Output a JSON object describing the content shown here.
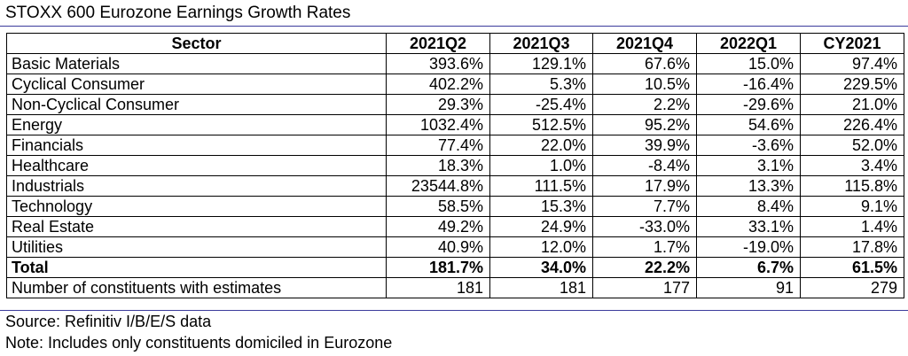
{
  "title": "STOXX 600 Eurozone Earnings Growth Rates",
  "table": {
    "headers": [
      "Sector",
      "2021Q2",
      "2021Q3",
      "2021Q4",
      "2022Q1",
      "CY2021"
    ],
    "rows": [
      {
        "sector": "Basic Materials",
        "values": [
          "393.6%",
          "129.1%",
          "67.6%",
          "15.0%",
          "97.4%"
        ]
      },
      {
        "sector": "Cyclical Consumer",
        "values": [
          "402.2%",
          "5.3%",
          "10.5%",
          "-16.4%",
          "229.5%"
        ]
      },
      {
        "sector": "Non-Cyclical Consumer",
        "values": [
          "29.3%",
          "-25.4%",
          "2.2%",
          "-29.6%",
          "21.0%"
        ]
      },
      {
        "sector": "Energy",
        "values": [
          "1032.4%",
          "512.5%",
          "95.2%",
          "54.6%",
          "226.4%"
        ]
      },
      {
        "sector": "Financials",
        "values": [
          "77.4%",
          "22.0%",
          "39.9%",
          "-3.6%",
          "52.0%"
        ]
      },
      {
        "sector": "Healthcare",
        "values": [
          "18.3%",
          "1.0%",
          "-8.4%",
          "3.1%",
          "3.4%"
        ]
      },
      {
        "sector": "Industrials",
        "values": [
          "23544.8%",
          "111.5%",
          "17.9%",
          "13.3%",
          "115.8%"
        ]
      },
      {
        "sector": "Technology",
        "values": [
          "58.5%",
          "15.3%",
          "7.7%",
          "8.4%",
          "9.1%"
        ]
      },
      {
        "sector": "Real Estate",
        "values": [
          "49.2%",
          "24.9%",
          "-33.0%",
          "33.1%",
          "1.4%"
        ]
      },
      {
        "sector": "Utilities",
        "values": [
          "40.9%",
          "12.0%",
          "1.7%",
          "-19.0%",
          "17.8%"
        ]
      }
    ],
    "total": {
      "sector": "Total",
      "values": [
        "181.7%",
        "34.0%",
        "22.2%",
        "6.7%",
        "61.5%"
      ]
    },
    "constituents": {
      "sector": "Number of constituents with estimates",
      "values": [
        "181",
        "181",
        "177",
        "91",
        "279"
      ]
    }
  },
  "source": "Source: Refinitiv I/B/E/S data",
  "note": "Note: Includes only constituents domiciled in Eurozone",
  "colors": {
    "rule": "#3b3b9c"
  }
}
